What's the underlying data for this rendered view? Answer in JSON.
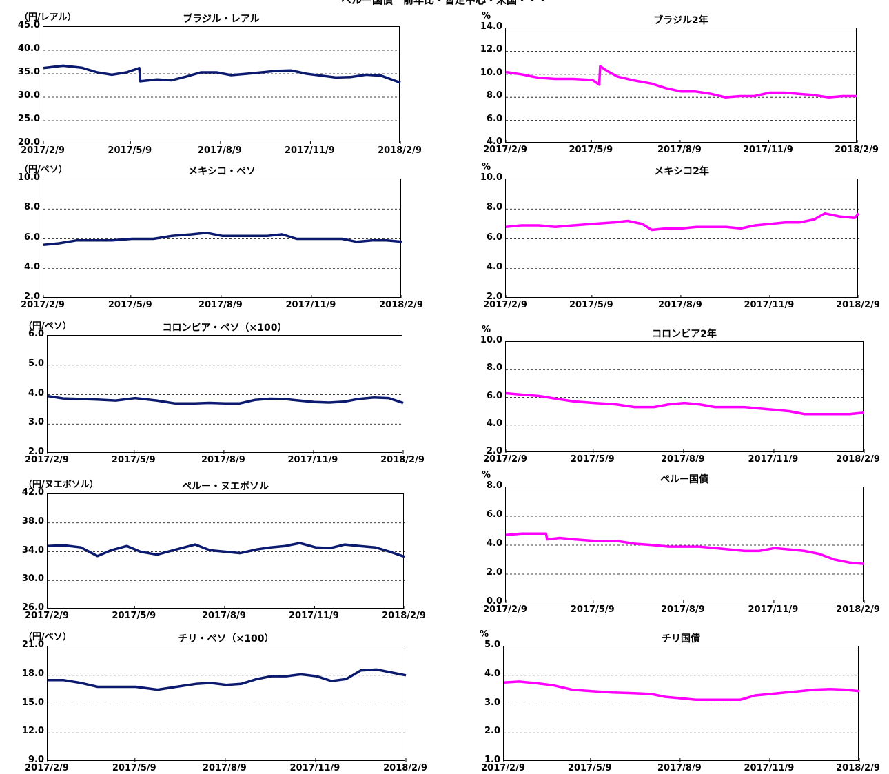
{
  "page_title": "ペルー国債　前年比・暫定中心・米国・・・",
  "colors": {
    "fx_line": "#0b1a6e",
    "rate_line": "#ff00ff",
    "grid": "#000000"
  },
  "chart_data": [
    {
      "id": "brl",
      "type": "line",
      "title": "ブラジル・レアル",
      "unit_label": "（円/レアル）",
      "ylim": [
        20,
        45
      ],
      "yticks": [
        "20.0",
        "25.0",
        "30.0",
        "35.0",
        "40.0",
        "45.0"
      ],
      "ytick_values": [
        20,
        25,
        30,
        35,
        40,
        45
      ],
      "xticks": [
        "2017/2/9",
        "2017/5/9",
        "2017/8/9",
        "2017/11/9",
        "2018/2/9"
      ],
      "grid": "dashed-horizontal",
      "series": [
        {
          "color": "#0b1a6e",
          "x": [
            "2017/2/9",
            "2017/3/1",
            "2017/3/20",
            "2017/4/5",
            "2017/4/20",
            "2017/5/5",
            "2017/5/18",
            "2017/5/19",
            "2017/6/5",
            "2017/6/20",
            "2017/7/5",
            "2017/7/20",
            "2017/8/5",
            "2017/8/20",
            "2017/9/5",
            "2017/9/20",
            "2017/10/5",
            "2017/10/20",
            "2017/11/5",
            "2017/11/20",
            "2017/12/5",
            "2017/12/20",
            "2018/1/5",
            "2018/1/20",
            "2018/2/9"
          ],
          "y": [
            36.2,
            36.7,
            36.3,
            35.3,
            34.8,
            35.3,
            36.2,
            33.4,
            33.8,
            33.6,
            34.4,
            35.3,
            35.3,
            34.7,
            35.0,
            35.3,
            35.6,
            35.7,
            35.0,
            34.6,
            34.2,
            34.3,
            34.8,
            34.6,
            33.1
          ]
        }
      ]
    },
    {
      "id": "br2y",
      "type": "line",
      "title": "ブラジル2年",
      "unit_label": "%",
      "ylim": [
        4,
        14
      ],
      "yticks": [
        "4.0",
        "6.0",
        "8.0",
        "10.0",
        "12.0",
        "14.0"
      ],
      "ytick_values": [
        4,
        6,
        8,
        10,
        12,
        14
      ],
      "xticks": [
        "2017/2/9",
        "2017/5/9",
        "2017/8/9",
        "2017/11/9",
        "2018/2/9"
      ],
      "grid": "dashed-horizontal",
      "series": [
        {
          "color": "#ff00ff",
          "x": [
            "2017/2/9",
            "2017/2/25",
            "2017/3/15",
            "2017/4/1",
            "2017/4/20",
            "2017/5/10",
            "2017/5/17",
            "2017/5/18",
            "2017/5/25",
            "2017/6/5",
            "2017/6/20",
            "2017/7/10",
            "2017/7/25",
            "2017/8/10",
            "2017/8/25",
            "2017/9/10",
            "2017/9/25",
            "2017/10/10",
            "2017/10/25",
            "2017/11/10",
            "2017/11/25",
            "2017/12/10",
            "2017/12/25",
            "2018/1/10",
            "2018/1/25",
            "2018/2/9"
          ],
          "y": [
            10.2,
            10.0,
            9.7,
            9.6,
            9.6,
            9.5,
            9.1,
            10.7,
            10.3,
            9.8,
            9.5,
            9.2,
            8.8,
            8.5,
            8.5,
            8.3,
            8.0,
            8.1,
            8.1,
            8.4,
            8.4,
            8.3,
            8.2,
            8.0,
            8.1,
            8.1
          ]
        }
      ]
    },
    {
      "id": "mxn",
      "type": "line",
      "title": "メキシコ・ペソ",
      "unit_label": "（円/ペソ）",
      "ylim": [
        2,
        10
      ],
      "yticks": [
        "2.0",
        "4.0",
        "6.0",
        "8.0",
        "10.0"
      ],
      "ytick_values": [
        2,
        4,
        6,
        8,
        10
      ],
      "xticks": [
        "2017/2/9",
        "2017/5/9",
        "2017/8/9",
        "2017/11/9",
        "2018/2/9"
      ],
      "grid": "dashed-horizontal",
      "series": [
        {
          "color": "#0b1a6e",
          "x": [
            "2017/2/9",
            "2017/2/25",
            "2017/3/15",
            "2017/4/1",
            "2017/4/20",
            "2017/5/10",
            "2017/6/1",
            "2017/6/20",
            "2017/7/10",
            "2017/7/25",
            "2017/8/10",
            "2017/8/25",
            "2017/9/10",
            "2017/9/25",
            "2017/10/10",
            "2017/10/25",
            "2017/11/10",
            "2017/11/25",
            "2017/12/10",
            "2017/12/25",
            "2018/1/10",
            "2018/1/25",
            "2018/2/9"
          ],
          "y": [
            5.6,
            5.7,
            5.9,
            5.9,
            5.9,
            6.0,
            6.0,
            6.2,
            6.3,
            6.4,
            6.2,
            6.2,
            6.2,
            6.2,
            6.3,
            6.0,
            6.0,
            6.0,
            6.0,
            5.8,
            5.9,
            5.9,
            5.8
          ]
        }
      ]
    },
    {
      "id": "mx2y",
      "type": "line",
      "title": "メキシコ2年",
      "unit_label": "%",
      "ylim": [
        2,
        10
      ],
      "yticks": [
        "2.0",
        "4.0",
        "6.0",
        "8.0",
        "10.0"
      ],
      "ytick_values": [
        2,
        4,
        6,
        8,
        10
      ],
      "xticks": [
        "2017/2/9",
        "2017/5/9",
        "2017/8/9",
        "2017/11/9",
        "2018/2/9"
      ],
      "grid": "dashed-horizontal",
      "series": [
        {
          "color": "#ff00ff",
          "x": [
            "2017/2/9",
            "2017/2/25",
            "2017/3/15",
            "2017/4/1",
            "2017/4/20",
            "2017/5/10",
            "2017/6/1",
            "2017/6/15",
            "2017/6/30",
            "2017/7/10",
            "2017/7/25",
            "2017/8/10",
            "2017/8/25",
            "2017/9/10",
            "2017/9/25",
            "2017/10/10",
            "2017/10/25",
            "2017/11/10",
            "2017/11/25",
            "2017/12/10",
            "2017/12/25",
            "2018/1/5",
            "2018/1/20",
            "2018/2/5",
            "2018/2/9"
          ],
          "y": [
            6.8,
            6.9,
            6.9,
            6.8,
            6.9,
            7.0,
            7.1,
            7.2,
            7.0,
            6.6,
            6.7,
            6.7,
            6.8,
            6.8,
            6.8,
            6.7,
            6.9,
            7.0,
            7.1,
            7.1,
            7.3,
            7.7,
            7.5,
            7.4,
            7.7
          ]
        }
      ]
    },
    {
      "id": "cop",
      "type": "line",
      "title": "コロンビア・ペソ（×100）",
      "unit_label": "（円/ペソ）",
      "ylim": [
        2,
        6
      ],
      "yticks": [
        "2.0",
        "3.0",
        "4.0",
        "5.0",
        "6.0"
      ],
      "ytick_values": [
        2,
        3,
        4,
        5,
        6
      ],
      "xticks": [
        "2017/2/9",
        "2017/5/9",
        "2017/8/9",
        "2017/11/9",
        "2018/2/9"
      ],
      "grid": "dashed-horizontal",
      "series": [
        {
          "color": "#0b1a6e",
          "x": [
            "2017/2/9",
            "2017/2/25",
            "2017/3/15",
            "2017/4/1",
            "2017/4/20",
            "2017/5/10",
            "2017/6/1",
            "2017/6/20",
            "2017/7/10",
            "2017/7/25",
            "2017/8/10",
            "2017/8/25",
            "2017/9/10",
            "2017/9/25",
            "2017/10/10",
            "2017/10/25",
            "2017/11/10",
            "2017/11/25",
            "2017/12/10",
            "2017/12/25",
            "2018/1/10",
            "2018/1/25",
            "2018/2/9"
          ],
          "y": [
            3.95,
            3.87,
            3.85,
            3.83,
            3.8,
            3.88,
            3.8,
            3.7,
            3.7,
            3.72,
            3.7,
            3.7,
            3.82,
            3.86,
            3.85,
            3.8,
            3.75,
            3.73,
            3.76,
            3.85,
            3.9,
            3.88,
            3.72
          ]
        }
      ]
    },
    {
      "id": "co2y",
      "type": "line",
      "title": "コロンビア2年",
      "unit_label": "%",
      "ylim": [
        2,
        10
      ],
      "yticks": [
        "2.0",
        "4.0",
        "6.0",
        "8.0",
        "10.0"
      ],
      "ytick_values": [
        2,
        4,
        6,
        8,
        10
      ],
      "xticks": [
        "2017/2/9",
        "2017/5/9",
        "2017/8/9",
        "2017/11/9",
        "2018/2/9"
      ],
      "grid": "dashed-horizontal",
      "series": [
        {
          "color": "#ff00ff",
          "x": [
            "2017/2/9",
            "2017/2/25",
            "2017/3/15",
            "2017/4/1",
            "2017/4/20",
            "2017/5/10",
            "2017/6/1",
            "2017/6/20",
            "2017/7/10",
            "2017/7/25",
            "2017/8/10",
            "2017/8/25",
            "2017/9/10",
            "2017/9/25",
            "2017/10/10",
            "2017/10/25",
            "2017/11/10",
            "2017/11/25",
            "2017/12/10",
            "2017/12/25",
            "2018/1/10",
            "2018/1/25",
            "2018/2/9"
          ],
          "y": [
            6.3,
            6.2,
            6.1,
            5.9,
            5.7,
            5.6,
            5.5,
            5.3,
            5.3,
            5.5,
            5.6,
            5.5,
            5.3,
            5.3,
            5.3,
            5.2,
            5.1,
            5.0,
            4.8,
            4.8,
            4.8,
            4.8,
            4.9
          ]
        }
      ]
    },
    {
      "id": "pen",
      "type": "line",
      "title": "ペルー・ヌエボソル",
      "unit_label": "（円/ヌエボソル）",
      "ylim": [
        26,
        42
      ],
      "yticks": [
        "26.0",
        "30.0",
        "34.0",
        "38.0",
        "42.0"
      ],
      "ytick_values": [
        26,
        30,
        34,
        38,
        42
      ],
      "xticks": [
        "2017/2/9",
        "2017/5/9",
        "2017/8/9",
        "2017/11/9",
        "2018/2/9"
      ],
      "grid": "dashed-horizontal",
      "series": [
        {
          "color": "#0b1a6e",
          "x": [
            "2017/2/9",
            "2017/2/25",
            "2017/3/15",
            "2017/4/1",
            "2017/4/15",
            "2017/5/1",
            "2017/5/15",
            "2017/6/1",
            "2017/6/20",
            "2017/7/10",
            "2017/7/25",
            "2017/8/10",
            "2017/8/25",
            "2017/9/10",
            "2017/9/25",
            "2017/10/10",
            "2017/10/25",
            "2017/11/10",
            "2017/11/25",
            "2017/12/10",
            "2017/12/25",
            "2018/1/10",
            "2018/1/25",
            "2018/2/9"
          ],
          "y": [
            34.8,
            34.9,
            34.6,
            33.4,
            34.2,
            34.8,
            34.0,
            33.6,
            34.3,
            35.0,
            34.2,
            34.0,
            33.8,
            34.3,
            34.6,
            34.8,
            35.2,
            34.6,
            34.5,
            35.0,
            34.8,
            34.6,
            34.0,
            33.3
          ]
        }
      ]
    },
    {
      "id": "pebond",
      "type": "line",
      "title": "ペルー国債",
      "unit_label": "%",
      "ylim": [
        0,
        8
      ],
      "yticks": [
        "0.0",
        "2.0",
        "4.0",
        "6.0",
        "8.0"
      ],
      "ytick_values": [
        0,
        2,
        4,
        6,
        8
      ],
      "xticks": [
        "2017/2/9",
        "2017/5/9",
        "2017/8/9",
        "2017/11/9",
        "2018/2/9"
      ],
      "grid": "dashed-horizontal",
      "series": [
        {
          "color": "#ff00ff",
          "x": [
            "2017/2/9",
            "2017/2/25",
            "2017/3/15",
            "2017/3/22",
            "2017/3/23",
            "2017/4/5",
            "2017/4/20",
            "2017/5/10",
            "2017/6/1",
            "2017/6/20",
            "2017/7/10",
            "2017/7/25",
            "2017/8/10",
            "2017/8/25",
            "2017/9/10",
            "2017/9/25",
            "2017/10/10",
            "2017/10/25",
            "2017/11/10",
            "2017/11/25",
            "2017/12/10",
            "2017/12/25",
            "2018/1/10",
            "2018/1/25",
            "2018/2/9"
          ],
          "y": [
            4.7,
            4.8,
            4.8,
            4.8,
            4.4,
            4.5,
            4.4,
            4.3,
            4.3,
            4.1,
            4.0,
            3.9,
            3.9,
            3.9,
            3.8,
            3.7,
            3.6,
            3.6,
            3.8,
            3.7,
            3.6,
            3.4,
            3.0,
            2.8,
            2.7
          ]
        }
      ]
    },
    {
      "id": "clp",
      "type": "line",
      "title": "チリ・ペソ（×100）",
      "unit_label": "（円/ペソ）",
      "ylim": [
        9,
        21
      ],
      "yticks": [
        "9.0",
        "12.0",
        "15.0",
        "18.0",
        "21.0"
      ],
      "ytick_values": [
        9,
        12,
        15,
        18,
        21
      ],
      "xticks": [
        "2017/2/9",
        "2017/5/9",
        "2017/8/9",
        "2017/11/9",
        "2018/2/9"
      ],
      "grid": "dashed-horizontal",
      "series": [
        {
          "color": "#0b1a6e",
          "x": [
            "2017/2/9",
            "2017/2/25",
            "2017/3/15",
            "2017/4/1",
            "2017/4/20",
            "2017/5/10",
            "2017/6/1",
            "2017/6/20",
            "2017/7/10",
            "2017/7/25",
            "2017/8/10",
            "2017/8/25",
            "2017/9/10",
            "2017/9/25",
            "2017/10/10",
            "2017/10/25",
            "2017/11/10",
            "2017/11/25",
            "2017/12/10",
            "2017/12/25",
            "2018/1/10",
            "2018/1/25",
            "2018/2/9"
          ],
          "y": [
            17.5,
            17.5,
            17.2,
            16.8,
            16.8,
            16.8,
            16.5,
            16.8,
            17.1,
            17.2,
            17.0,
            17.1,
            17.6,
            17.9,
            17.9,
            18.1,
            17.9,
            17.4,
            17.6,
            18.5,
            18.6,
            18.3,
            18.0
          ]
        }
      ]
    },
    {
      "id": "clbond",
      "type": "line",
      "title": "チリ国債",
      "unit_label": "%",
      "ylim": [
        1,
        5
      ],
      "yticks": [
        "1.0",
        "2.0",
        "3.0",
        "4.0",
        "5.0"
      ],
      "ytick_values": [
        1,
        2,
        3,
        4,
        5
      ],
      "xticks": [
        "2017/2/9",
        "2017/5/9",
        "2017/8/9",
        "2017/11/9",
        "2018/2/9"
      ],
      "grid": "dashed-horizontal",
      "series": [
        {
          "color": "#ff00ff",
          "x": [
            "2017/2/9",
            "2017/2/25",
            "2017/3/15",
            "2017/4/1",
            "2017/4/20",
            "2017/5/10",
            "2017/6/1",
            "2017/6/20",
            "2017/7/10",
            "2017/7/25",
            "2017/8/10",
            "2017/8/25",
            "2017/9/10",
            "2017/9/25",
            "2017/10/10",
            "2017/10/25",
            "2017/11/10",
            "2017/11/25",
            "2017/12/10",
            "2017/12/25",
            "2018/1/10",
            "2018/1/25",
            "2018/2/9"
          ],
          "y": [
            3.75,
            3.78,
            3.72,
            3.65,
            3.5,
            3.45,
            3.4,
            3.38,
            3.35,
            3.25,
            3.2,
            3.15,
            3.15,
            3.15,
            3.15,
            3.3,
            3.35,
            3.4,
            3.45,
            3.5,
            3.52,
            3.5,
            3.45
          ]
        }
      ]
    }
  ]
}
